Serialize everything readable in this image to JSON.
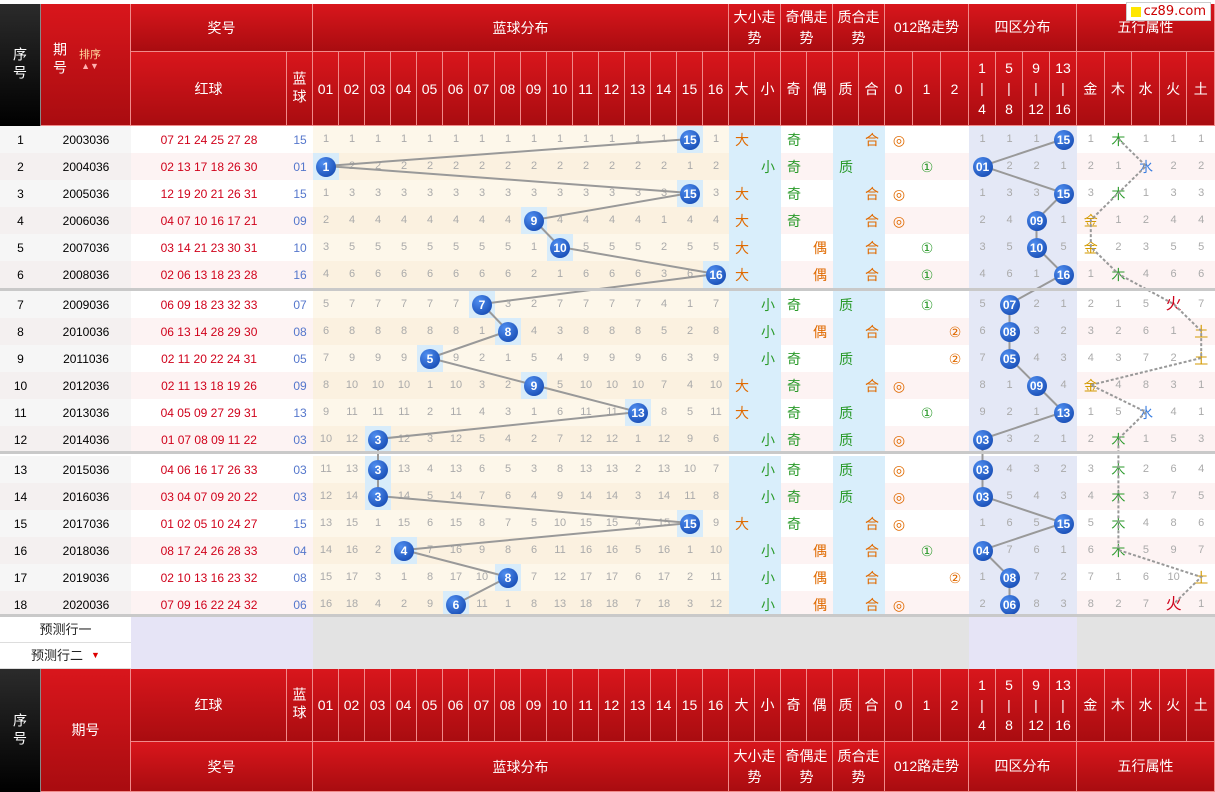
{
  "logo": "cz89.com",
  "header": {
    "seq": "序号",
    "issue": "期号",
    "sort": "排序",
    "prize": "奖号",
    "red": "红球",
    "blue": "蓝球",
    "blue_dist": "蓝球分布",
    "bigsmall": "大小走势",
    "oddeven": "奇偶走势",
    "primecomp": "质合走势",
    "road012": "012路走势",
    "four_zone": "四区分布",
    "five_elem": "五行属性"
  },
  "nums": [
    "01",
    "02",
    "03",
    "04",
    "05",
    "06",
    "07",
    "08",
    "09",
    "10",
    "11",
    "12",
    "13",
    "14",
    "15",
    "16"
  ],
  "bigsmall_labels": [
    "大",
    "小"
  ],
  "oddeven_labels": [
    "奇",
    "偶"
  ],
  "prime_labels": [
    "质",
    "合"
  ],
  "road_labels": [
    "0",
    "1",
    "2"
  ],
  "zone_labels": [
    [
      "1",
      "|",
      "4"
    ],
    [
      "5",
      "|",
      "8"
    ],
    [
      "9",
      "|",
      "12"
    ],
    [
      "13",
      "|",
      "16"
    ]
  ],
  "elem_labels": [
    "金",
    "木",
    "水",
    "火",
    "土"
  ],
  "rows": [
    {
      "n": "1",
      "issue": "2003036",
      "red": "07 21 24 25 27 28",
      "blue": "15",
      "dist": [
        "1",
        "1",
        "1",
        "1",
        "1",
        "1",
        "1",
        "1",
        "1",
        "1",
        "1",
        "1",
        "1",
        "1",
        "15",
        "1"
      ],
      "bs": "大",
      "oe": "奇",
      "pc": "合",
      "road": "◎",
      "road_i": 0,
      "zone": [
        "1",
        "1",
        "1",
        "15"
      ],
      "elem": [
        "1",
        "木",
        "1",
        "1",
        "1"
      ],
      "elem_i": 1
    },
    {
      "n": "2",
      "issue": "2004036",
      "red": "02 13 17 18 26 30",
      "blue": "01",
      "dist": [
        "1",
        "2",
        "2",
        "2",
        "2",
        "2",
        "2",
        "2",
        "2",
        "2",
        "2",
        "2",
        "2",
        "2",
        "1",
        "2"
      ],
      "bs": "小",
      "oe": "奇",
      "pc": "质",
      "road": "①",
      "road_i": 1,
      "zone": [
        "01",
        "2",
        "2",
        "1"
      ],
      "elem": [
        "2",
        "1",
        "水",
        "2",
        "2"
      ],
      "elem_i": 2
    },
    {
      "n": "3",
      "issue": "2005036",
      "red": "12 19 20 21 26 31",
      "blue": "15",
      "dist": [
        "1",
        "3",
        "3",
        "3",
        "3",
        "3",
        "3",
        "3",
        "3",
        "3",
        "3",
        "3",
        "3",
        "3",
        "15",
        "3"
      ],
      "bs": "大",
      "oe": "奇",
      "pc": "合",
      "road": "◎",
      "road_i": 0,
      "zone": [
        "1",
        "3",
        "3",
        "15"
      ],
      "elem": [
        "3",
        "木",
        "1",
        "3",
        "3"
      ],
      "elem_i": 1
    },
    {
      "n": "4",
      "issue": "2006036",
      "red": "04 07 10 16 17 21",
      "blue": "09",
      "dist": [
        "2",
        "4",
        "4",
        "4",
        "4",
        "4",
        "4",
        "4",
        "9",
        "4",
        "4",
        "4",
        "4",
        "1",
        "4",
        "4"
      ],
      "bs": "大",
      "oe": "奇",
      "pc": "合",
      "road": "◎",
      "road_i": 0,
      "zone": [
        "2",
        "4",
        "09",
        "1"
      ],
      "elem": [
        "金",
        "1",
        "2",
        "4",
        "4"
      ],
      "elem_i": 0
    },
    {
      "n": "5",
      "issue": "2007036",
      "red": "03 14 21 23 30 31",
      "blue": "10",
      "dist": [
        "3",
        "5",
        "5",
        "5",
        "5",
        "5",
        "5",
        "5",
        "1",
        "10",
        "5",
        "5",
        "5",
        "2",
        "5",
        "5"
      ],
      "bs": "大",
      "oe": "偶",
      "pc": "合",
      "road": "①",
      "road_i": 1,
      "zone": [
        "3",
        "5",
        "10",
        "5"
      ],
      "elem": [
        "金",
        "2",
        "3",
        "5",
        "5"
      ],
      "elem_i": 0
    },
    {
      "n": "6",
      "issue": "2008036",
      "red": "02 06 13 18 23 28",
      "blue": "16",
      "dist": [
        "4",
        "6",
        "6",
        "6",
        "6",
        "6",
        "6",
        "6",
        "2",
        "1",
        "6",
        "6",
        "6",
        "3",
        "6",
        "16"
      ],
      "bs": "大",
      "oe": "偶",
      "pc": "合",
      "road": "①",
      "road_i": 1,
      "zone": [
        "4",
        "6",
        "1",
        "16"
      ],
      "elem": [
        "1",
        "木",
        "4",
        "6",
        "6"
      ],
      "elem_i": 1
    },
    {
      "n": "7",
      "issue": "2009036",
      "red": "06 09 18 23 32 33",
      "blue": "07",
      "dist": [
        "5",
        "7",
        "7",
        "7",
        "7",
        "7",
        "7",
        "3",
        "2",
        "7",
        "7",
        "7",
        "7",
        "4",
        "1",
        "7"
      ],
      "bs": "小",
      "oe": "奇",
      "pc": "质",
      "road": "①",
      "road_i": 1,
      "zone": [
        "5",
        "07",
        "2",
        "1"
      ],
      "elem": [
        "2",
        "1",
        "5",
        "火",
        "7"
      ],
      "elem_i": 3
    },
    {
      "n": "8",
      "issue": "2010036",
      "red": "06 13 14 28 29 30",
      "blue": "08",
      "dist": [
        "6",
        "8",
        "8",
        "8",
        "8",
        "8",
        "1",
        "8",
        "4",
        "3",
        "8",
        "8",
        "8",
        "5",
        "2",
        "8"
      ],
      "bs": "小",
      "oe": "偶",
      "pc": "合",
      "road": "②",
      "road_i": 2,
      "zone": [
        "6",
        "08",
        "3",
        "2"
      ],
      "elem": [
        "3",
        "2",
        "6",
        "1",
        "土"
      ],
      "elem_i": 4
    },
    {
      "n": "9",
      "issue": "2011036",
      "red": "02 11 20 22 24 31",
      "blue": "05",
      "dist": [
        "7",
        "9",
        "9",
        "9",
        "5",
        "9",
        "2",
        "1",
        "5",
        "4",
        "9",
        "9",
        "9",
        "6",
        "3",
        "9"
      ],
      "bs": "小",
      "oe": "奇",
      "pc": "质",
      "road": "②",
      "road_i": 2,
      "zone": [
        "7",
        "05",
        "4",
        "3"
      ],
      "elem": [
        "4",
        "3",
        "7",
        "2",
        "土"
      ],
      "elem_i": 4
    },
    {
      "n": "10",
      "issue": "2012036",
      "red": "02 11 13 18 19 26",
      "blue": "09",
      "dist": [
        "8",
        "10",
        "10",
        "10",
        "1",
        "10",
        "3",
        "2",
        "9",
        "5",
        "10",
        "10",
        "10",
        "7",
        "4",
        "10"
      ],
      "bs": "大",
      "oe": "奇",
      "pc": "合",
      "road": "◎",
      "road_i": 0,
      "zone": [
        "8",
        "1",
        "09",
        "4"
      ],
      "elem": [
        "金",
        "4",
        "8",
        "3",
        "1"
      ],
      "elem_i": 0
    },
    {
      "n": "11",
      "issue": "2013036",
      "red": "04 05 09 27 29 31",
      "blue": "13",
      "dist": [
        "9",
        "11",
        "11",
        "11",
        "2",
        "11",
        "4",
        "3",
        "1",
        "6",
        "11",
        "11",
        "13",
        "8",
        "5",
        "11"
      ],
      "bs": "大",
      "oe": "奇",
      "pc": "质",
      "road": "①",
      "road_i": 1,
      "zone": [
        "9",
        "2",
        "1",
        "13"
      ],
      "elem": [
        "1",
        "5",
        "水",
        "4",
        "1"
      ],
      "elem_i": 2
    },
    {
      "n": "12",
      "issue": "2014036",
      "red": "01 07 08 09 11 22",
      "blue": "03",
      "dist": [
        "10",
        "12",
        "3",
        "12",
        "3",
        "12",
        "5",
        "4",
        "2",
        "7",
        "12",
        "12",
        "1",
        "12",
        "9",
        "6"
      ],
      "bs": "小",
      "oe": "奇",
      "pc": "质",
      "road": "◎",
      "road_i": 0,
      "zone": [
        "03",
        "3",
        "2",
        "1"
      ],
      "elem": [
        "2",
        "木",
        "1",
        "5",
        "3"
      ],
      "elem_i": 1
    },
    {
      "n": "13",
      "issue": "2015036",
      "red": "04 06 16 17 26 33",
      "blue": "03",
      "dist": [
        "11",
        "13",
        "3",
        "13",
        "4",
        "13",
        "6",
        "5",
        "3",
        "8",
        "13",
        "13",
        "2",
        "13",
        "10",
        "7"
      ],
      "bs": "小",
      "oe": "奇",
      "pc": "质",
      "road": "◎",
      "road_i": 0,
      "zone": [
        "03",
        "4",
        "3",
        "2"
      ],
      "elem": [
        "3",
        "木",
        "2",
        "6",
        "4"
      ],
      "elem_i": 1
    },
    {
      "n": "14",
      "issue": "2016036",
      "red": "03 04 07 09 20 22",
      "blue": "03",
      "dist": [
        "12",
        "14",
        "3",
        "14",
        "5",
        "14",
        "7",
        "6",
        "4",
        "9",
        "14",
        "14",
        "3",
        "14",
        "11",
        "8"
      ],
      "bs": "小",
      "oe": "奇",
      "pc": "质",
      "road": "◎",
      "road_i": 0,
      "zone": [
        "03",
        "5",
        "4",
        "3"
      ],
      "elem": [
        "4",
        "木",
        "3",
        "7",
        "5"
      ],
      "elem_i": 1
    },
    {
      "n": "15",
      "issue": "2017036",
      "red": "01 02 05 10 24 27",
      "blue": "15",
      "dist": [
        "13",
        "15",
        "1",
        "15",
        "6",
        "15",
        "8",
        "7",
        "5",
        "10",
        "15",
        "15",
        "4",
        "15",
        "15",
        "9"
      ],
      "bs": "大",
      "oe": "奇",
      "pc": "合",
      "road": "◎",
      "road_i": 0,
      "zone": [
        "1",
        "6",
        "5",
        "15"
      ],
      "elem": [
        "5",
        "木",
        "4",
        "8",
        "6"
      ],
      "elem_i": 1
    },
    {
      "n": "16",
      "issue": "2018036",
      "red": "08 17 24 26 28 33",
      "blue": "04",
      "dist": [
        "14",
        "16",
        "2",
        "4",
        "7",
        "16",
        "9",
        "8",
        "6",
        "11",
        "16",
        "16",
        "5",
        "16",
        "1",
        "10"
      ],
      "bs": "小",
      "oe": "偶",
      "pc": "合",
      "road": "①",
      "road_i": 1,
      "zone": [
        "04",
        "7",
        "6",
        "1"
      ],
      "elem": [
        "6",
        "木",
        "5",
        "9",
        "7"
      ],
      "elem_i": 1
    },
    {
      "n": "17",
      "issue": "2019036",
      "red": "02 10 13 16 23 32",
      "blue": "08",
      "dist": [
        "15",
        "17",
        "3",
        "1",
        "8",
        "17",
        "10",
        "8",
        "7",
        "12",
        "17",
        "17",
        "6",
        "17",
        "2",
        "11"
      ],
      "bs": "小",
      "oe": "偶",
      "pc": "合",
      "road": "②",
      "road_i": 2,
      "zone": [
        "1",
        "08",
        "7",
        "2"
      ],
      "elem": [
        "7",
        "1",
        "6",
        "10",
        "土"
      ],
      "elem_i": 4
    },
    {
      "n": "18",
      "issue": "2020036",
      "red": "07 09 16 22 24 32",
      "blue": "06",
      "dist": [
        "16",
        "18",
        "4",
        "2",
        "9",
        "6",
        "11",
        "1",
        "8",
        "13",
        "18",
        "18",
        "7",
        "18",
        "3",
        "12"
      ],
      "bs": "小",
      "oe": "偶",
      "pc": "合",
      "road": "◎",
      "road_i": 0,
      "zone": [
        "2",
        "06",
        "8",
        "3"
      ],
      "elem": [
        "8",
        "2",
        "7",
        "火",
        "1"
      ],
      "elem_i": 3
    }
  ],
  "predict": [
    "预测行一",
    "预测行二"
  ]
}
